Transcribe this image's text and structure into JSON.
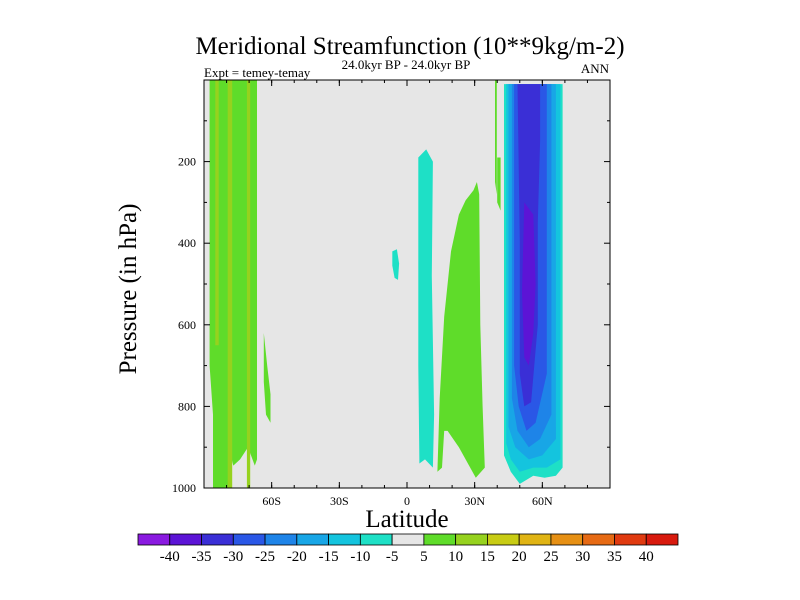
{
  "chart_data": {
    "type": "contour",
    "title": "Meridional Streamfunction (10**9kg/m-2)",
    "subtitle": "24.0kyr BP - 24.0kyr BP",
    "left_note": "Expt = temey-temay",
    "right_note": "ANN",
    "xlabel": "Latitude",
    "ylabel": "Pressure (in hPa)",
    "xlim": [
      -90,
      90
    ],
    "ylim": [
      1000,
      0
    ],
    "xticks": [
      {
        "value": -60,
        "label": "60S"
      },
      {
        "value": -30,
        "label": "30S"
      },
      {
        "value": 0,
        "label": "0"
      },
      {
        "value": 30,
        "label": "30N"
      },
      {
        "value": 60,
        "label": "60N"
      }
    ],
    "yticks": [
      {
        "value": 200,
        "label": "200"
      },
      {
        "value": 400,
        "label": "400"
      },
      {
        "value": 600,
        "label": "600"
      },
      {
        "value": 800,
        "label": "800"
      },
      {
        "value": 1000,
        "label": "1000"
      }
    ],
    "background_color": "#e6e6e6",
    "colorbar": {
      "labels": [
        "-40",
        "-35",
        "-30",
        "-25",
        "-20",
        "-15",
        "-10",
        "-5",
        "5",
        "10",
        "15",
        "20",
        "25",
        "30",
        "35",
        "40"
      ],
      "colors": [
        "#8a1ae0",
        "#5c14d6",
        "#3a2fd6",
        "#2a57e6",
        "#1e84e8",
        "#18a6e6",
        "#14c4de",
        "#1ee0c6",
        "#e6e6e6",
        "#5fdc2a",
        "#96d21e",
        "#c8cc14",
        "#e0b414",
        "#e69014",
        "#e66a14",
        "#e03a10",
        "#d81a0e"
      ]
    },
    "regions": [
      {
        "name": "sh-high-lat-positive",
        "band": "5-10",
        "polygon": [
          [
            -86,
            0
          ],
          [
            -78,
            0
          ],
          [
            -78,
            1000
          ],
          [
            -86,
            1000
          ]
        ]
      },
      {
        "name": "southern-positive-column",
        "band": "5-10",
        "polygon": [
          [
            -87.5,
            0
          ],
          [
            -66.5,
            0
          ],
          [
            -66.5,
            930
          ],
          [
            -67.5,
            945
          ],
          [
            -70.5,
            900
          ],
          [
            -74,
            930
          ],
          [
            -77,
            945
          ],
          [
            -79,
            900
          ],
          [
            -82,
            920
          ],
          [
            -83,
            880
          ],
          [
            -86,
            820
          ],
          [
            -87.5,
            700
          ]
        ]
      },
      {
        "name": "southern-positive-column-core-a",
        "band": "10-15",
        "polygon": [
          [
            -85,
            0
          ],
          [
            -83.5,
            0
          ],
          [
            -83.5,
            650
          ],
          [
            -85,
            650
          ]
        ]
      },
      {
        "name": "southern-positive-column-core-b",
        "band": "10-15",
        "polygon": [
          [
            -79.5,
            0
          ],
          [
            -77.5,
            0
          ],
          [
            -77.5,
            1000
          ],
          [
            -79.5,
            1000
          ]
        ]
      },
      {
        "name": "southern-positive-column-core-c",
        "band": "10-15",
        "polygon": [
          [
            -71,
            0
          ],
          [
            -69.5,
            0
          ],
          [
            -69.5,
            1000
          ],
          [
            -71,
            1000
          ]
        ]
      },
      {
        "name": "sh-midlat-positive-blob",
        "band": "5-10",
        "polygon": [
          [
            -63.5,
            620
          ],
          [
            -62,
            700
          ],
          [
            -60.5,
            770
          ],
          [
            -60.5,
            840
          ],
          [
            -62.5,
            820
          ],
          [
            -63.5,
            740
          ]
        ]
      },
      {
        "name": "equatorial-negative-small",
        "band": "-10--5",
        "polygon": [
          [
            -6.5,
            420
          ],
          [
            -4.5,
            415
          ],
          [
            -3.5,
            450
          ],
          [
            -4,
            490
          ],
          [
            -5.5,
            485
          ],
          [
            -6.5,
            455
          ]
        ]
      },
      {
        "name": "equatorial-negative-column",
        "band": "-10--5",
        "polygon": [
          [
            5,
            190
          ],
          [
            8.5,
            170
          ],
          [
            11.5,
            200
          ],
          [
            11,
            480
          ],
          [
            12,
            820
          ],
          [
            11.5,
            950
          ],
          [
            8,
            930
          ],
          [
            5.5,
            940
          ],
          [
            5,
            700
          ]
        ]
      },
      {
        "name": "nh-subtropical-positive",
        "band": "5-10",
        "polygon": [
          [
            13.5,
            960
          ],
          [
            14.5,
            780
          ],
          [
            16.5,
            580
          ],
          [
            19.5,
            420
          ],
          [
            23,
            330
          ],
          [
            26,
            295
          ],
          [
            29.5,
            270
          ],
          [
            31,
            250
          ],
          [
            32,
            280
          ],
          [
            32.5,
            600
          ],
          [
            33.5,
            800
          ],
          [
            34.5,
            950
          ],
          [
            30.5,
            975
          ],
          [
            27,
            940
          ],
          [
            23,
            900
          ],
          [
            20.5,
            880
          ],
          [
            18,
            860
          ],
          [
            16.5,
            860
          ],
          [
            15.5,
            950
          ]
        ]
      },
      {
        "name": "nh-small-positive-strip",
        "band": "5-10",
        "polygon": [
          [
            40,
            190
          ],
          [
            41.5,
            190
          ],
          [
            41.5,
            320
          ],
          [
            40,
            300
          ]
        ]
      },
      {
        "name": "nh-negative-cell-band-1",
        "band": "-10--5",
        "polygon": [
          [
            43,
            10
          ],
          [
            69,
            10
          ],
          [
            69,
            950
          ],
          [
            66,
            970
          ],
          [
            61,
            975
          ],
          [
            56,
            970
          ],
          [
            50,
            990
          ],
          [
            46,
            960
          ],
          [
            43,
            920
          ],
          [
            43,
            500
          ]
        ]
      },
      {
        "name": "nh-negative-cell-band-2",
        "band": "-15--10",
        "polygon": [
          [
            44,
            10
          ],
          [
            68,
            10
          ],
          [
            68,
            930
          ],
          [
            62,
            950
          ],
          [
            56,
            950
          ],
          [
            50,
            960
          ],
          [
            46,
            930
          ],
          [
            44,
            890
          ]
        ]
      },
      {
        "name": "nh-negative-cell-band-3",
        "band": "-20--15",
        "polygon": [
          [
            45,
            10
          ],
          [
            66,
            10
          ],
          [
            66,
            880
          ],
          [
            60,
            920
          ],
          [
            54,
            930
          ],
          [
            48,
            900
          ],
          [
            45,
            850
          ]
        ]
      },
      {
        "name": "nh-negative-cell-band-4",
        "band": "-25--20",
        "polygon": [
          [
            46.5,
            10
          ],
          [
            64,
            10
          ],
          [
            64,
            820
          ],
          [
            59,
            880
          ],
          [
            54,
            900
          ],
          [
            49,
            860
          ],
          [
            46.5,
            780
          ]
        ]
      },
      {
        "name": "nh-negative-cell-band-5",
        "band": "-30--25",
        "polygon": [
          [
            47.5,
            10
          ],
          [
            62,
            10
          ],
          [
            62,
            720
          ],
          [
            57,
            840
          ],
          [
            53,
            860
          ],
          [
            49.5,
            800
          ],
          [
            47.5,
            700
          ]
        ]
      },
      {
        "name": "nh-negative-cell-band-6",
        "band": "-35--30",
        "polygon": [
          [
            49,
            10
          ],
          [
            59,
            10
          ],
          [
            59,
            150
          ],
          [
            58,
            350
          ],
          [
            58,
            600
          ],
          [
            55,
            790
          ],
          [
            52,
            800
          ],
          [
            50,
            720
          ],
          [
            50,
            400
          ]
        ]
      },
      {
        "name": "nh-negative-cell-band-7",
        "band": "-40--35",
        "polygon": [
          [
            52,
            300
          ],
          [
            56,
            330
          ],
          [
            57,
            500
          ],
          [
            56,
            620
          ],
          [
            54,
            700
          ],
          [
            52,
            680
          ],
          [
            51,
            520
          ]
        ]
      },
      {
        "name": "nh-edge-positive-strip",
        "band": "5-10",
        "polygon": [
          [
            39,
            0
          ],
          [
            39.8,
            0
          ],
          [
            39.8,
            280
          ],
          [
            39,
            250
          ]
        ]
      }
    ]
  }
}
